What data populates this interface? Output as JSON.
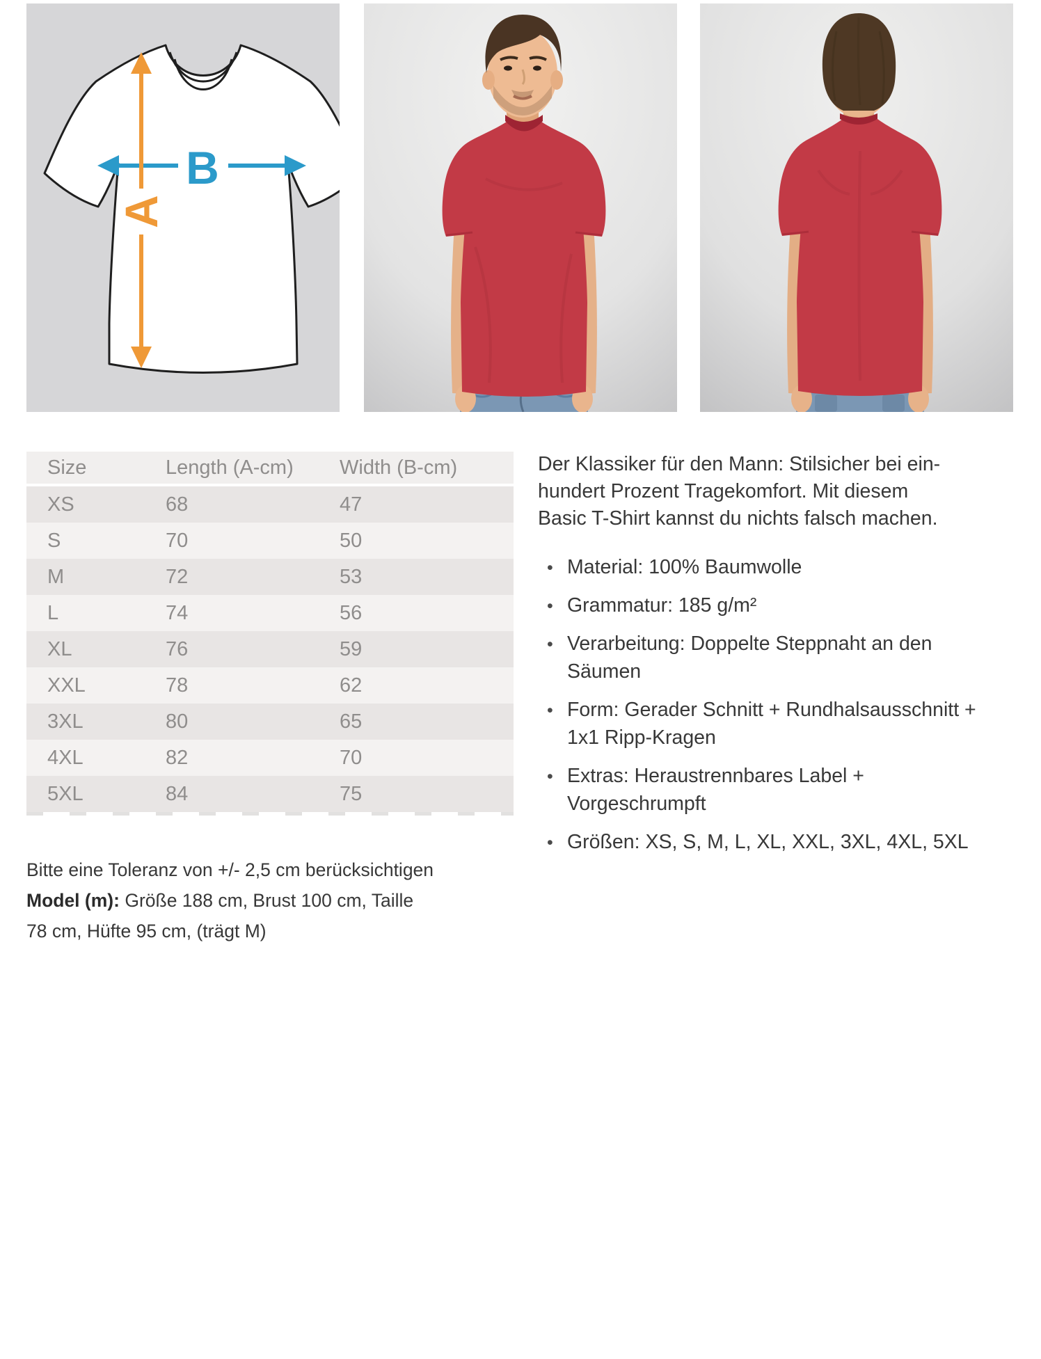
{
  "diagram": {
    "label_a": "A",
    "label_b": "B"
  },
  "size_table": {
    "headers": [
      "Size",
      "Length (A-cm)",
      "Width (B-cm)"
    ],
    "rows": [
      {
        "size": "XS",
        "length": "68",
        "width": "47"
      },
      {
        "size": "S",
        "length": "70",
        "width": "50"
      },
      {
        "size": "M",
        "length": "72",
        "width": "53"
      },
      {
        "size": "L",
        "length": "74",
        "width": "56"
      },
      {
        "size": "XL",
        "length": "76",
        "width": "59"
      },
      {
        "size": "XXL",
        "length": "78",
        "width": "62"
      },
      {
        "size": "3XL",
        "length": "80",
        "width": "65"
      },
      {
        "size": "4XL",
        "length": "82",
        "width": "70"
      },
      {
        "size": "5XL",
        "length": "84",
        "width": "75"
      }
    ]
  },
  "description": {
    "intro_lines": [
      "Der Klassiker für den Mann: Stilsicher bei ein-",
      "hundert Prozent Tragekomfort. Mit diesem",
      "Basic T-Shirt kannst du nichts falsch machen."
    ],
    "bullets": [
      "Material: 100% Baumwolle",
      "Grammatur: 185 g/m²",
      "Verarbeitung: Doppelte Steppnaht an den Säumen",
      "Form: Gerader Schnitt + Rundhalsausschnitt + 1x1 Ripp-Kragen",
      "Extras: Heraustrennbares Label + Vorgeschrumpft",
      "Größen: XS, S, M, L, XL, XXL, 3XL, 4XL, 5XL"
    ],
    "bullet_glyph": "•"
  },
  "notes": {
    "tolerance": "Bitte eine Toleranz von +/- 2,5 cm berücksichtigen",
    "model_label": "Model (m):",
    "model_line1": "Größe 188 cm, Brust 100 cm, Taille",
    "model_line2": "78 cm, Hüfte 95 cm, (trägt M)"
  },
  "colors": {
    "accent_orange": "#ef9937",
    "accent_blue": "#2b9aca",
    "shirt_red": "#c23a46"
  }
}
